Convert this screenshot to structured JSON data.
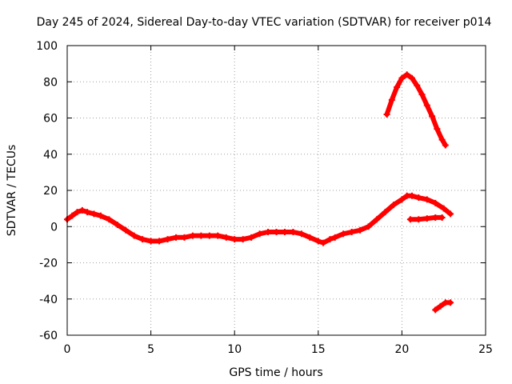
{
  "chart_data": {
    "type": "scatter",
    "title": "Day 245 of 2024, Sidereal Day-to-day VTEC variation (SDTVAR) for receiver p014",
    "xlabel": "GPS time / hours",
    "ylabel": "SDTVAR / TECUs",
    "xlim": [
      0,
      25
    ],
    "ylim": [
      -60,
      100
    ],
    "xticks": [
      "0",
      "5",
      "10",
      "15",
      "20",
      "25"
    ],
    "yticks": [
      "-60",
      "-40",
      "-20",
      "0",
      "20",
      "40",
      "60",
      "80",
      "100"
    ],
    "grid": true,
    "series_color": "#ff0000",
    "series": [
      {
        "name": "main-arc",
        "x": [
          0,
          0.3,
          0.6,
          0.9,
          1.2,
          1.6,
          2.0,
          2.5,
          3.0,
          3.5,
          4.0,
          4.5,
          5.0,
          5.5,
          6.0,
          6.5,
          7.0,
          7.5,
          8.0,
          8.5,
          9.0,
          9.5,
          10.0,
          10.5,
          11.0,
          11.5,
          12.0,
          12.5,
          13.0,
          13.5,
          14.0,
          14.5,
          15.0,
          15.3,
          15.7,
          16.0,
          16.5,
          17.0,
          17.5,
          18.0,
          18.5,
          19.0,
          19.5,
          20.0,
          20.3,
          20.6,
          21.0,
          21.5,
          22.0,
          22.5,
          22.9
        ],
        "y": [
          4,
          6,
          8,
          9,
          8,
          7,
          6,
          4,
          1,
          -2,
          -5,
          -7,
          -8,
          -8,
          -7,
          -6,
          -6,
          -5,
          -5,
          -5,
          -5,
          -6,
          -7,
          -7,
          -6,
          -4,
          -3,
          -3,
          -3,
          -3,
          -4,
          -6,
          -8,
          -9,
          -7,
          -6,
          -4,
          -3,
          -2,
          0,
          4,
          8,
          12,
          15,
          17,
          17,
          16,
          15,
          13,
          10,
          7
        ]
      },
      {
        "name": "high-arc",
        "x": [
          19.1,
          19.4,
          19.7,
          20.0,
          20.3,
          20.6,
          20.9,
          21.2,
          21.5,
          21.8,
          22.1,
          22.4,
          22.6
        ],
        "y": [
          62,
          70,
          77,
          82,
          84,
          82,
          78,
          73,
          67,
          61,
          54,
          48,
          45
        ]
      },
      {
        "name": "low-segment",
        "x": [
          20.5,
          21.0,
          21.5,
          22.0,
          22.4
        ],
        "y": [
          4,
          4,
          4.5,
          5,
          5
        ]
      },
      {
        "name": "negative-segment",
        "x": [
          22.0,
          22.3,
          22.6,
          22.9
        ],
        "y": [
          -46,
          -44,
          -42,
          -42
        ]
      }
    ]
  }
}
